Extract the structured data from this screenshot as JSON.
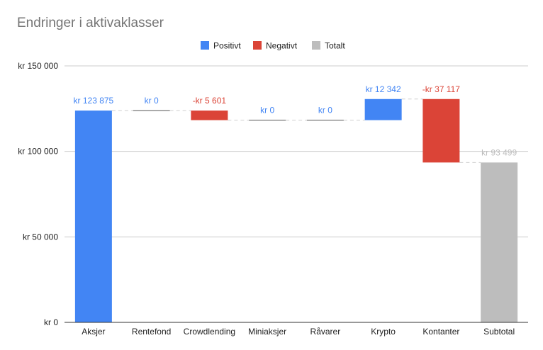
{
  "chart_data": {
    "type": "bar",
    "subtype": "waterfall",
    "title": "Endringer i aktivaklasser",
    "xlabel": "",
    "ylabel": "",
    "ylim": [
      0,
      150000
    ],
    "yticks": [
      {
        "value": 0,
        "label": "kr   0"
      },
      {
        "value": 50000,
        "label": "kr  50 000"
      },
      {
        "value": 100000,
        "label": "kr  100 000"
      },
      {
        "value": 150000,
        "label": "kr  150 000"
      }
    ],
    "grid": true,
    "legend_position": "top",
    "legend": [
      {
        "name": "Positivt",
        "color": "#4285f4"
      },
      {
        "name": "Negativt",
        "color": "#db4437"
      },
      {
        "name": "Totalt",
        "color": "#bdbdbd"
      }
    ],
    "categories": [
      "Aksjer",
      "Rentefond",
      "Crowdlending",
      "Miniaksjer",
      "Råvarer",
      "Krypto",
      "Kontanter",
      "Subtotal"
    ],
    "bars": [
      {
        "category": "Aksjer",
        "start": 0,
        "end": 123875,
        "kind": "positive",
        "label": "kr  123 875"
      },
      {
        "category": "Rentefond",
        "start": 123875,
        "end": 123875,
        "kind": "positive",
        "label": "kr   0"
      },
      {
        "category": "Crowdlending",
        "start": 123875,
        "end": 118274,
        "kind": "negative",
        "label": "-kr  5 601"
      },
      {
        "category": "Miniaksjer",
        "start": 118274,
        "end": 118274,
        "kind": "positive",
        "label": "kr   0"
      },
      {
        "category": "Råvarer",
        "start": 118274,
        "end": 118274,
        "kind": "positive",
        "label": "kr   0"
      },
      {
        "category": "Krypto",
        "start": 118274,
        "end": 130616,
        "kind": "positive",
        "label": "kr  12 342"
      },
      {
        "category": "Kontanter",
        "start": 130616,
        "end": 93499,
        "kind": "negative",
        "label": "-kr  37 117"
      },
      {
        "category": "Subtotal",
        "start": 0,
        "end": 93499,
        "kind": "total",
        "label": "kr  93 499"
      }
    ],
    "colors": {
      "positive": "#4285f4",
      "negative": "#db4437",
      "total": "#bdbdbd"
    }
  }
}
